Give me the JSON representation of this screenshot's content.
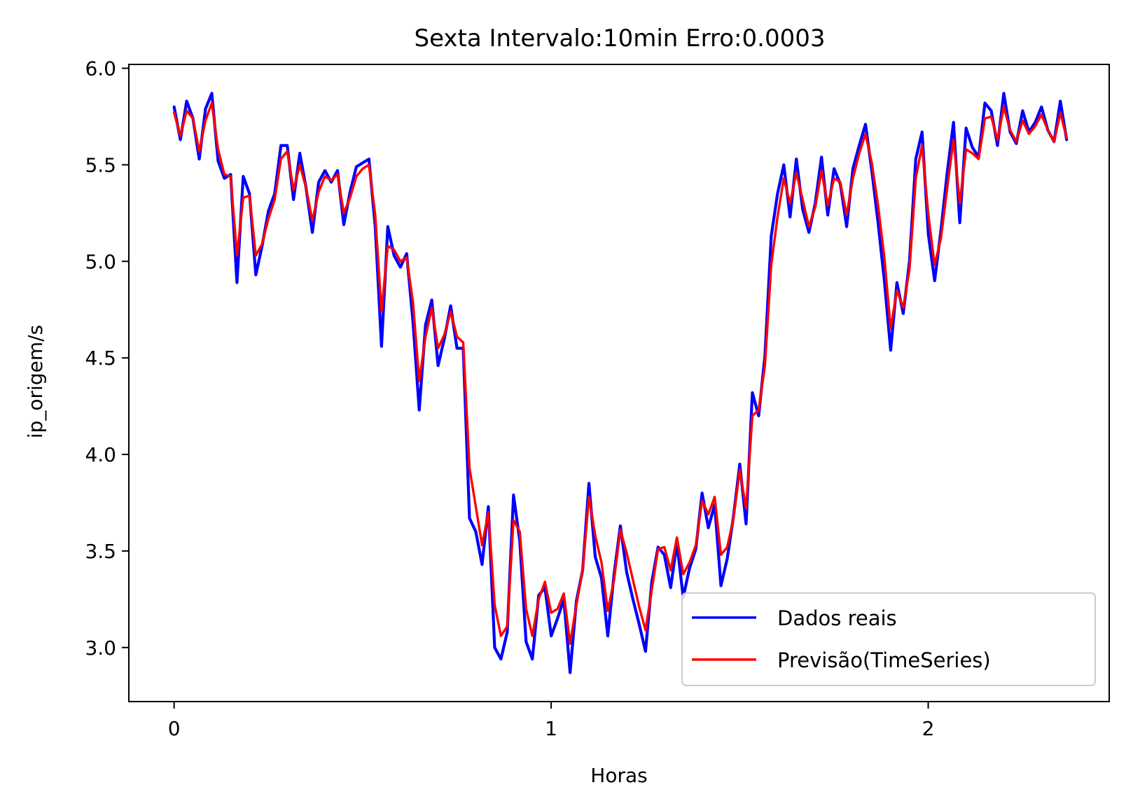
{
  "chart_data": {
    "type": "line",
    "title": "Sexta Intervalo:10min Erro:0.0003",
    "xlabel": "Horas",
    "ylabel": "ip_origem/s",
    "xlim": [
      -0.12,
      2.48
    ],
    "ylim": [
      2.72,
      6.02
    ],
    "x_ticks": [
      0,
      1,
      2
    ],
    "x_tick_labels": [
      "0",
      "1",
      "2"
    ],
    "y_ticks": [
      3.0,
      3.5,
      4.0,
      4.5,
      5.0,
      5.5,
      6.0
    ],
    "y_tick_labels": [
      "3.0",
      "3.5",
      "4.0",
      "4.5",
      "5.0",
      "5.5",
      "6.0"
    ],
    "grid": false,
    "legend_position": "lower-right",
    "x_start": 0,
    "x_step": 0.01667,
    "series": [
      {
        "name": "Dados reais",
        "color": "#0000ff",
        "values": [
          5.8,
          5.63,
          5.83,
          5.74,
          5.53,
          5.79,
          5.87,
          5.52,
          5.43,
          5.45,
          4.89,
          5.44,
          5.35,
          4.93,
          5.08,
          5.26,
          5.35,
          5.6,
          5.6,
          5.32,
          5.56,
          5.38,
          5.15,
          5.41,
          5.47,
          5.41,
          5.47,
          5.19,
          5.36,
          5.49,
          5.51,
          5.53,
          5.18,
          4.56,
          5.18,
          5.03,
          4.97,
          5.04,
          4.69,
          4.23,
          4.67,
          4.8,
          4.46,
          4.6,
          4.77,
          4.55,
          4.55,
          3.67,
          3.6,
          3.43,
          3.73,
          3.0,
          2.94,
          3.08,
          3.79,
          3.55,
          3.03,
          2.94,
          3.27,
          3.31,
          3.06,
          3.15,
          3.25,
          2.87,
          3.24,
          3.4,
          3.85,
          3.47,
          3.36,
          3.06,
          3.38,
          3.63,
          3.39,
          3.25,
          3.12,
          2.98,
          3.34,
          3.52,
          3.48,
          3.31,
          3.54,
          3.26,
          3.41,
          3.51,
          3.8,
          3.62,
          3.74,
          3.32,
          3.46,
          3.68,
          3.95,
          3.64,
          4.32,
          4.2,
          4.51,
          5.13,
          5.35,
          5.5,
          5.23,
          5.53,
          5.27,
          5.15,
          5.3,
          5.54,
          5.24,
          5.48,
          5.4,
          5.18,
          5.48,
          5.6,
          5.71,
          5.47,
          5.2,
          4.9,
          4.54,
          4.89,
          4.73,
          5.0,
          5.53,
          5.67,
          5.14,
          4.9,
          5.16,
          5.46,
          5.72,
          5.2,
          5.69,
          5.59,
          5.54,
          5.82,
          5.78,
          5.6,
          5.87,
          5.67,
          5.61,
          5.78,
          5.67,
          5.72,
          5.8,
          5.68,
          5.62,
          5.83,
          5.63
        ]
      },
      {
        "name": "Previsão(TimeSeries)",
        "color": "#ff0000",
        "values": [
          5.77,
          5.65,
          5.78,
          5.74,
          5.57,
          5.73,
          5.82,
          5.58,
          5.45,
          5.44,
          5.03,
          5.33,
          5.34,
          5.03,
          5.09,
          5.22,
          5.32,
          5.53,
          5.57,
          5.37,
          5.5,
          5.38,
          5.21,
          5.36,
          5.44,
          5.42,
          5.45,
          5.25,
          5.33,
          5.44,
          5.48,
          5.5,
          5.24,
          4.74,
          5.08,
          5.06,
          5.0,
          5.02,
          4.79,
          4.38,
          4.61,
          4.76,
          4.55,
          4.62,
          4.74,
          4.61,
          4.58,
          3.93,
          3.73,
          3.53,
          3.7,
          3.22,
          3.06,
          3.11,
          3.66,
          3.6,
          3.2,
          3.06,
          3.25,
          3.34,
          3.18,
          3.2,
          3.28,
          3.02,
          3.22,
          3.4,
          3.78,
          3.58,
          3.44,
          3.19,
          3.35,
          3.61,
          3.49,
          3.35,
          3.21,
          3.09,
          3.3,
          3.51,
          3.52,
          3.4,
          3.57,
          3.38,
          3.44,
          3.53,
          3.76,
          3.69,
          3.78,
          3.48,
          3.52,
          3.67,
          3.92,
          3.72,
          4.2,
          4.23,
          4.46,
          4.98,
          5.23,
          5.43,
          5.3,
          5.46,
          5.32,
          5.18,
          5.28,
          5.47,
          5.29,
          5.43,
          5.41,
          5.24,
          5.43,
          5.56,
          5.66,
          5.51,
          5.29,
          5.02,
          4.65,
          4.85,
          4.76,
          4.96,
          5.43,
          5.6,
          5.24,
          4.98,
          5.12,
          5.38,
          5.63,
          5.3,
          5.58,
          5.56,
          5.53,
          5.74,
          5.75,
          5.63,
          5.8,
          5.68,
          5.62,
          5.73,
          5.66,
          5.7,
          5.76,
          5.68,
          5.62,
          5.77,
          5.64
        ]
      }
    ]
  }
}
